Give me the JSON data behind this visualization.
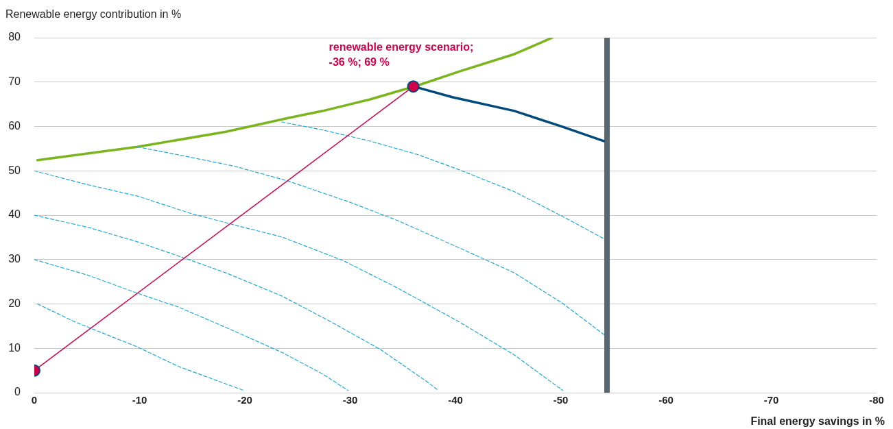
{
  "chart_data": {
    "type": "line",
    "xlabel": "Final energy savings in %",
    "ylabel": "Renewable energy contribution in %",
    "xlim": [
      0,
      -80
    ],
    "xticks": [
      0,
      -10,
      -20,
      -30,
      -40,
      -50,
      -60,
      -70,
      -80
    ],
    "ylim": [
      0,
      80
    ],
    "yticks": [
      0,
      10,
      20,
      30,
      40,
      50,
      60,
      70,
      80
    ],
    "grid": "y",
    "marker": "none",
    "line_style": "solid",
    "ref_lines": [
      {
        "axis": "x",
        "value": -54.4,
        "color": "#5b6770"
      }
    ],
    "annotations": [
      {
        "text": "renewable energy scenario;\n-36 %; 69 %",
        "x": -36,
        "y": 69
      }
    ],
    "series": [
      {
        "color": "#1fa9d4",
        "line_style": "dashed",
        "x": [
          -0.3,
          -3.9,
          -9.8,
          -13.7,
          -19.9
        ],
        "values": [
          20,
          15.9,
          10.3,
          5.9,
          0.5
        ]
      },
      {
        "color": "#1fa9d4",
        "line_style": "dashed",
        "x": [
          0,
          -5.2,
          -9.8,
          -13.7,
          -18.2,
          -23.5,
          -27.4,
          -29.8
        ],
        "values": [
          30,
          26.4,
          22.4,
          19.3,
          14.7,
          9.1,
          4.2,
          0.5
        ]
      },
      {
        "color": "#1fa9d4",
        "line_style": "dashed",
        "x": [
          0,
          -5.2,
          -9.8,
          -14.3,
          -18.2,
          -23.5,
          -28,
          -32.9,
          -37.1,
          -38.4
        ],
        "values": [
          40,
          37.2,
          34,
          30.3,
          27,
          21.8,
          16.2,
          9.7,
          2.8,
          0.5
        ]
      },
      {
        "color": "#1fa9d4",
        "line_style": "dashed",
        "x": [
          0,
          -5.2,
          -9.8,
          -15,
          -19.5,
          -23.5,
          -29.3,
          -34.5,
          -40.4,
          -45.6,
          -50.2
        ],
        "values": [
          50,
          46.8,
          44.3,
          40.3,
          37.5,
          35.1,
          29.8,
          23.6,
          15.9,
          8.5,
          0.5
        ]
      },
      {
        "color": "#1fa9d4",
        "line_style": "dashed",
        "x": [
          -9.8,
          -13.7,
          -18.9,
          -24.1,
          -30,
          -34.5,
          -40.4,
          -45.6,
          -50.2,
          -54.1
        ],
        "values": [
          55.4,
          53.6,
          51.1,
          47.7,
          42.9,
          38.8,
          32.6,
          27,
          20.1,
          13.1
        ]
      },
      {
        "color": "#1fa9d4",
        "line_style": "dashed",
        "x": [
          -23.5,
          -27.4,
          -31.9,
          -36.5,
          -40.4,
          -45.6,
          -50.2,
          -54.1
        ],
        "values": [
          61,
          59.2,
          56.7,
          53.6,
          50.2,
          45.3,
          39.7,
          34.7
        ]
      },
      {
        "color": "#7ab51d",
        "x": [
          -0.3,
          -9.8,
          -18.2,
          -24.1,
          -27.4,
          -31.9,
          -36.5,
          -40.4,
          -45.6,
          -49.2
        ],
        "values": [
          52.4,
          55.4,
          58.8,
          61.9,
          63.5,
          66.1,
          69.3,
          72.4,
          76.3,
          80
        ]
      },
      {
        "color": "#004b7c",
        "x": [
          -36.5,
          -39.7,
          -45.6,
          -50.2,
          -54.1
        ],
        "values": [
          68.7,
          66.6,
          63.5,
          59.9,
          56.7
        ]
      },
      {
        "color": "#d0004b",
        "marker": "circle",
        "x": [
          0,
          -36
        ],
        "values": [
          5,
          69
        ]
      }
    ]
  }
}
